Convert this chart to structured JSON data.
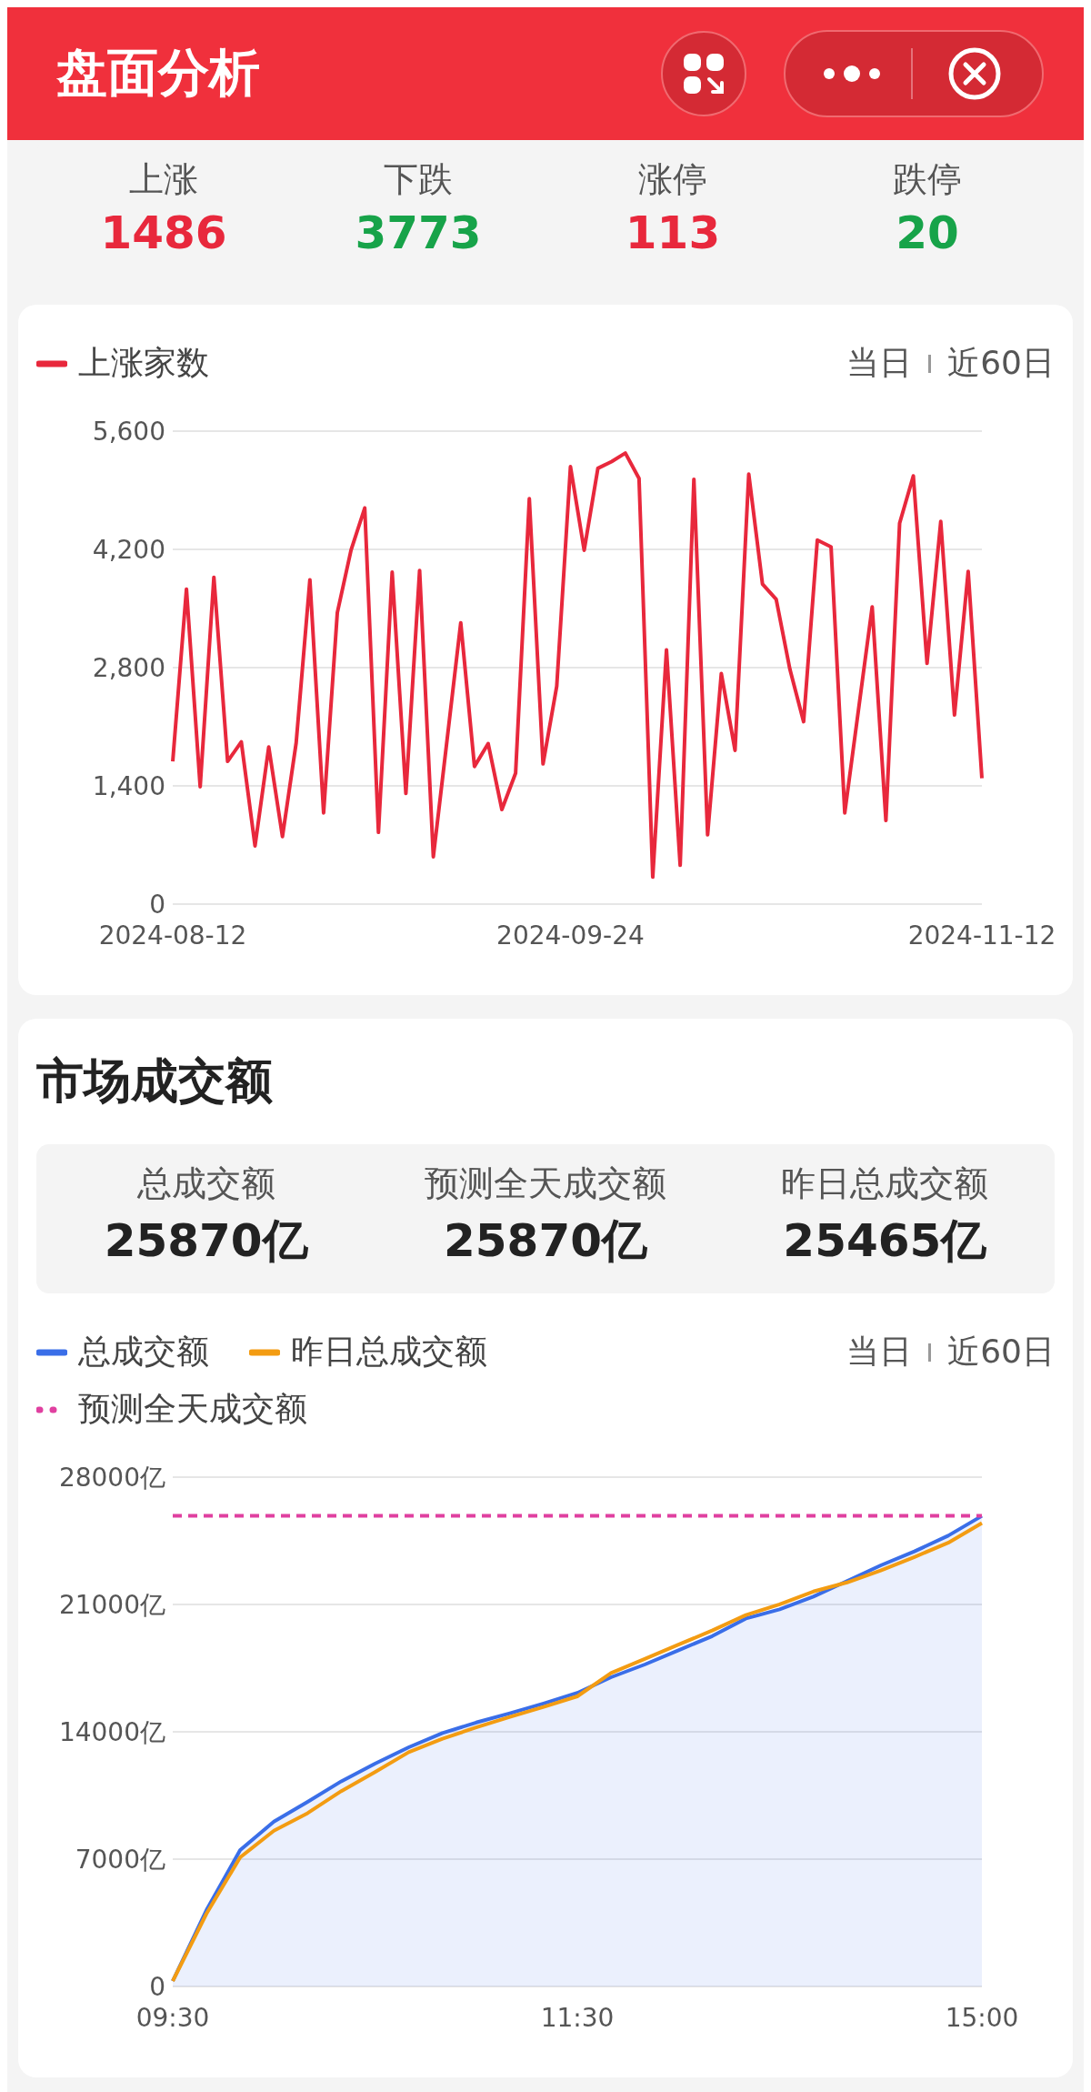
{
  "chart_data": [
    {
      "type": "other",
      "title": "盘面分析",
      "categories": [
        "上涨",
        "下跌",
        "涨停",
        "跌停"
      ],
      "values": [
        1486,
        3773,
        113,
        20
      ],
      "colors": [
        "#e8283c",
        "#17a349",
        "#e8283c",
        "#17a349"
      ],
      "data_labels": true
    },
    {
      "type": "line",
      "categories": [
        "2024-08-12",
        null,
        null,
        null,
        null,
        null,
        null,
        null,
        null,
        null,
        null,
        null,
        null,
        null,
        null,
        null,
        null,
        null,
        null,
        null,
        null,
        null,
        null,
        null,
        null,
        null,
        null,
        null,
        null,
        "2024-09-24",
        null,
        null,
        null,
        null,
        null,
        null,
        null,
        null,
        null,
        null,
        null,
        null,
        null,
        null,
        null,
        null,
        null,
        null,
        null,
        null,
        null,
        null,
        null,
        null,
        null,
        null,
        null,
        null,
        null,
        "2024-11-12"
      ],
      "series": [
        {
          "name": "上涨家数",
          "color": "#e8283c",
          "values": [
            1690,
            3730,
            1390,
            3870,
            1690,
            1920,
            690,
            1860,
            800,
            1910,
            3840,
            1080,
            3450,
            4190,
            4690,
            850,
            3930,
            1310,
            3950,
            560,
            1940,
            3330,
            1630,
            1900,
            1120,
            1550,
            4800,
            1660,
            2580,
            5180,
            4190,
            5160,
            5240,
            5340,
            5040,
            320,
            3010,
            460,
            5030,
            820,
            2730,
            1820,
            5090,
            3790,
            3610,
            2780,
            2160,
            4310,
            4230,
            1080,
            2300,
            3520,
            990,
            4510,
            5070,
            2850,
            4530,
            2240,
            3940,
            1490
          ]
        }
      ],
      "ylim": [
        0,
        5600
      ],
      "yticks": [
        0,
        {
          "value": 1400,
          "label": "1,400"
        },
        {
          "value": 2800,
          "label": "2,800"
        },
        {
          "value": 4200,
          "label": "4,200"
        },
        {
          "value": 5600,
          "label": "5,600"
        }
      ],
      "grid": "y",
      "legend": "top left",
      "marker": "none",
      "annotations": [
        "当日",
        "近60日"
      ]
    },
    {
      "type": "other",
      "title": "市场成交额",
      "categories": [
        "总成交额",
        "预测全天成交额",
        "昨日总成交额"
      ],
      "value_labels": [
        "25870亿",
        "25870亿",
        "25465亿"
      ]
    },
    {
      "type": "line",
      "categories": [
        "09:30",
        null,
        null,
        null,
        null,
        null,
        null,
        null,
        null,
        null,
        null,
        null,
        "11:30",
        null,
        null,
        null,
        null,
        null,
        null,
        null,
        null,
        null,
        null,
        null,
        "15:00"
      ],
      "series": [
        {
          "name": "总成交额",
          "type": "area",
          "color": "#3a6ee8",
          "values": [
            300,
            4200,
            7500,
            9060,
            10150,
            11280,
            12250,
            13150,
            13930,
            14510,
            15020,
            15560,
            16140,
            17000,
            17700,
            18480,
            19260,
            20230,
            20730,
            21430,
            22290,
            23150,
            23920,
            24780,
            25870
          ]
        },
        {
          "name": "昨日总成交额",
          "color": "#f39c12",
          "values": [
            300,
            4000,
            7100,
            8560,
            9530,
            10740,
            11790,
            12880,
            13620,
            14240,
            14820,
            15370,
            15950,
            17230,
            18010,
            18790,
            19570,
            20420,
            21010,
            21710,
            22210,
            22870,
            23610,
            24390,
            25470
          ]
        },
        {
          "name": "预测全天成交额",
          "color": "#e040a0",
          "line_style": "dashed",
          "values": [
            25870,
            25870,
            25870,
            25870,
            25870,
            25870,
            25870,
            25870,
            25870,
            25870,
            25870,
            25870,
            25870,
            25870,
            25870,
            25870,
            25870,
            25870,
            25870,
            25870,
            25870,
            25870,
            25870,
            25870,
            25870
          ]
        }
      ],
      "ylim": [
        0,
        28000
      ],
      "yticks": [
        0,
        {
          "value": 7000,
          "label": "7000亿"
        },
        {
          "value": 14000,
          "label": "14000亿"
        },
        {
          "value": 21000,
          "label": "21000亿"
        },
        {
          "value": 28000,
          "label": "28000亿"
        }
      ],
      "grid": "y",
      "legend": "top left",
      "marker": "none",
      "annotations": [
        "当日",
        "近60日"
      ]
    }
  ]
}
